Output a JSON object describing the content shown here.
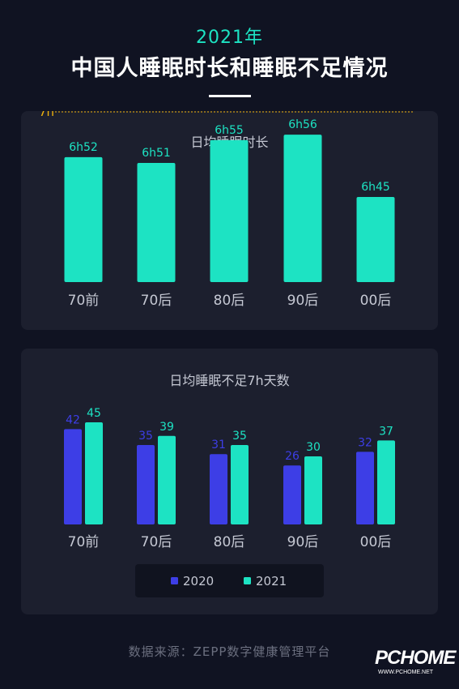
{
  "header": {
    "year": "2021年",
    "title": "中国人睡眠时长和睡眠不足情况"
  },
  "colors": {
    "teal": "#1de3c3",
    "blue": "#3d3ee6",
    "ref_line": "#f2b30c"
  },
  "chart_data": [
    {
      "type": "bar",
      "title": "日均睡眠时长",
      "categories": [
        "70前",
        "70后",
        "80后",
        "90后",
        "00后"
      ],
      "values": [
        6.867,
        6.85,
        6.917,
        6.933,
        6.75
      ],
      "value_labels": [
        "6h52",
        "6h51",
        "6h55",
        "6h56",
        "6h45"
      ],
      "reference_line": {
        "value": 7,
        "label": "7h"
      },
      "color": "#1de3c3"
    },
    {
      "type": "bar",
      "title": "日均睡眠不足7h天数",
      "categories": [
        "70前",
        "70后",
        "80后",
        "90后",
        "00后"
      ],
      "series": [
        {
          "name": "2020",
          "values": [
            42,
            35,
            31,
            26,
            32
          ],
          "color": "#3d3ee6"
        },
        {
          "name": "2021",
          "values": [
            45,
            39,
            35,
            30,
            37
          ],
          "color": "#1de3c3"
        }
      ],
      "legend": "bottom-center"
    }
  ],
  "footer": {
    "source": "数据来源：ZEPP数字健康管理平台",
    "logo": "PCHOME",
    "logo_url": "WWW.PCHOME.NET"
  }
}
